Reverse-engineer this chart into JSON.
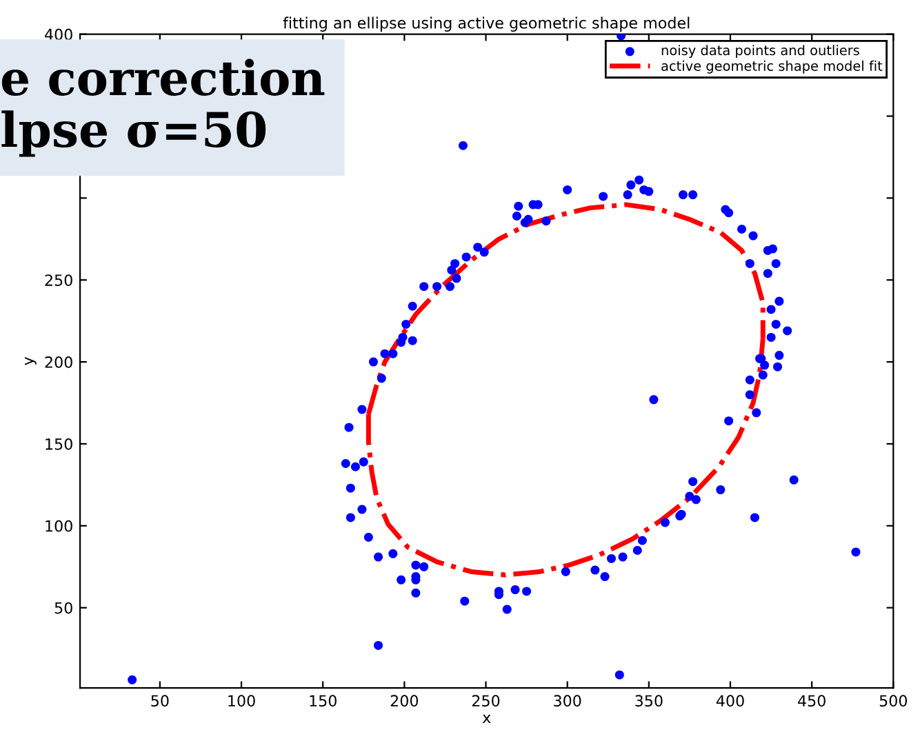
{
  "chart_data": {
    "type": "scatter",
    "title": "fitting an ellipse using active geometric shape model",
    "xlabel": "x",
    "ylabel": "y",
    "xlim": [
      1,
      500
    ],
    "ylim": [
      1,
      400
    ],
    "xticks": [
      50,
      100,
      150,
      200,
      250,
      300,
      350,
      400,
      450,
      500
    ],
    "yticks": [
      50,
      100,
      150,
      200,
      250,
      {
        "value": 300,
        "label": null
      },
      {
        "value": 350,
        "label": null
      },
      400
    ],
    "grid": false,
    "legend": "top right",
    "annotations": [
      "e correction",
      "lpse σ=50"
    ],
    "series": [
      {
        "name": "noisy data points and outliers",
        "color": "#0000ff",
        "marker": "circle",
        "x": [
          333,
          236,
          300,
          322,
          337,
          339,
          344,
          347,
          350,
          371,
          377,
          397,
          399,
          407,
          414,
          412,
          423,
          426,
          423,
          428,
          430,
          425,
          435,
          428,
          425,
          430,
          419,
          269,
          270,
          276,
          274,
          279,
          282,
          287,
          245,
          249,
          238,
          231,
          229,
          232,
          228,
          220,
          212,
          205,
          201,
          199,
          205,
          198,
          193,
          188,
          181,
          186,
          174,
          166,
          164,
          170,
          175,
          167,
          174,
          167,
          178,
          184,
          193,
          198,
          207,
          212,
          207,
          207,
          207,
          237,
          258,
          258,
          263,
          268,
          275,
          184,
          33,
          299,
          317,
          323,
          332,
          327,
          334,
          343,
          346,
          360,
          369,
          370,
          375,
          379,
          377,
          394,
          399,
          353,
          415,
          439,
          477,
          416,
          412,
          412,
          420,
          429,
          421,
          418
        ],
        "values": [
          399,
          332,
          305,
          301,
          302,
          308,
          311,
          305,
          304,
          302,
          302,
          293,
          291,
          281,
          277,
          260,
          268,
          269,
          254,
          260,
          237,
          232,
          219,
          223,
          215,
          204,
          202,
          289,
          295,
          287,
          285,
          296,
          296,
          286,
          270,
          267,
          264,
          260,
          256,
          251,
          246,
          246,
          246,
          234,
          223,
          215,
          213,
          212,
          205,
          205,
          200,
          190,
          171,
          160,
          138,
          136,
          139,
          123,
          110,
          105,
          93,
          81,
          83,
          67,
          76,
          75,
          69,
          67,
          59,
          54,
          60,
          58,
          49,
          61,
          60,
          27,
          6,
          72,
          73,
          69,
          9,
          80,
          81,
          85,
          91,
          102,
          106,
          107,
          118,
          116,
          127,
          122,
          164,
          177,
          105,
          128,
          84,
          169,
          180,
          189,
          192,
          197,
          198,
          202
        ]
      },
      {
        "name": "active geometric shape model fit",
        "type": "line",
        "color": "#ff0000",
        "marker": "none",
        "line_style": "dashdot",
        "x": [
          178,
          178,
          180,
          183,
          190,
          202,
          220,
          241,
          262,
          283,
          301,
          319,
          340,
          357,
          375,
          393,
          405,
          414,
          418,
          420,
          null,
          178,
          183,
          188,
          195,
          207,
          223,
          241,
          258,
          276,
          297,
          314,
          336,
          357,
          375,
          394,
          407,
          415,
          420,
          420
        ],
        "values": [
          168,
          151,
          133,
          117,
          101,
          87,
          78,
          72,
          70,
          72,
          76,
          82,
          92,
          103,
          117,
          136,
          154,
          175,
          193,
          214,
          null,
          168,
          186,
          200,
          211,
          229,
          246,
          262,
          275,
          284,
          290,
          294,
          296,
          293,
          287,
          279,
          268,
          254,
          236,
          214
        ]
      }
    ]
  }
}
